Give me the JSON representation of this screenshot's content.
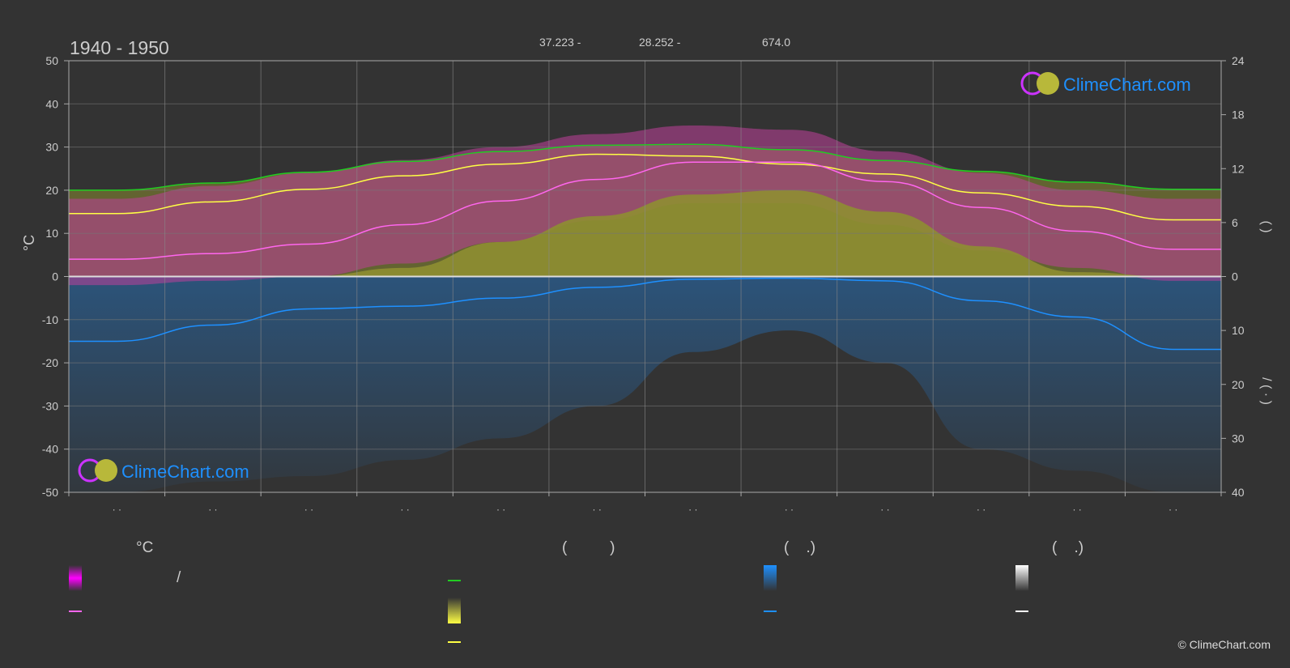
{
  "period": "1940 - 1950",
  "header_stats": [
    "37.223 -",
    "28.252 -",
    "674.0"
  ],
  "brand": "ClimeChart.com",
  "copyright": "© ClimeChart.com",
  "colors": {
    "background": "#333333",
    "daylight": "#22cc22",
    "sunshine": "#ffff44",
    "temp_mean": "#ff66ee",
    "temp_band": "#ee00ee",
    "rain": "#1e90ff",
    "snow": "#ffffff",
    "brand_blue": "#1e90ff"
  },
  "chart_data": {
    "type": "line",
    "title": "",
    "x_ticks": [
      "· ·",
      "· ·",
      "· ·",
      "· ·",
      "· ·",
      "· ·",
      "· ·",
      "· ·",
      "· ·",
      "· ·",
      "· ·",
      "· ·"
    ],
    "y_left": {
      "label": "°C",
      "range": [
        -50,
        50
      ],
      "ticks": [
        50,
        40,
        30,
        20,
        10,
        0,
        -10,
        -20,
        -30,
        -40,
        -50
      ]
    },
    "y_right_top": {
      "label": "(   )",
      "range": [
        0,
        24
      ],
      "ticks": [
        24,
        18,
        12,
        6,
        0
      ]
    },
    "y_right_bottom": {
      "label": "/    (   ·   )",
      "range": [
        0,
        40
      ],
      "ticks": [
        0,
        10,
        20,
        30,
        40
      ]
    },
    "grid": true,
    "series": [
      {
        "key": "daylight",
        "axis": "right_top",
        "values": [
          9.6,
          10.4,
          11.6,
          12.8,
          13.9,
          14.6,
          14.7,
          14.1,
          12.9,
          11.7,
          10.5,
          9.7
        ]
      },
      {
        "key": "sunshine",
        "axis": "right_top",
        "values": [
          7.0,
          8.3,
          9.7,
          11.2,
          12.5,
          13.6,
          13.4,
          12.5,
          11.4,
          9.3,
          7.8,
          6.3
        ]
      },
      {
        "key": "temp_mean",
        "axis": "left",
        "values": [
          4.0,
          5.3,
          7.5,
          12.0,
          17.5,
          22.5,
          26.5,
          26.5,
          22.0,
          16.0,
          10.5,
          6.3
        ]
      },
      {
        "key": "temp_band_max",
        "axis": "left",
        "values": [
          18,
          21,
          24,
          27,
          30,
          33,
          35,
          34,
          29,
          24,
          20,
          18
        ]
      },
      {
        "key": "temp_band_min",
        "axis": "left",
        "values": [
          -2,
          -1,
          0,
          3,
          8,
          13,
          17,
          17,
          12,
          6,
          2,
          -1
        ]
      },
      {
        "key": "sunshine_band_min",
        "axis": "left",
        "values": [
          0,
          0,
          0,
          2,
          8,
          14,
          19,
          20,
          15,
          7,
          1,
          0
        ]
      },
      {
        "key": "rain",
        "axis": "right_bottom",
        "values": [
          12.0,
          9.0,
          6.0,
          5.5,
          4.0,
          2.0,
          0.5,
          0.3,
          0.8,
          4.5,
          7.5,
          13.5
        ]
      },
      {
        "key": "rain_band",
        "axis": "right_bottom",
        "values": [
          40,
          38,
          37,
          34,
          30,
          24,
          14,
          10,
          16,
          32,
          36,
          40
        ]
      }
    ]
  },
  "legend": {
    "col1_header": "°C",
    "col1_item1_text": "/",
    "col2_header": "(          )",
    "col3_header": "(    .)",
    "col4_header": "(    .)"
  }
}
